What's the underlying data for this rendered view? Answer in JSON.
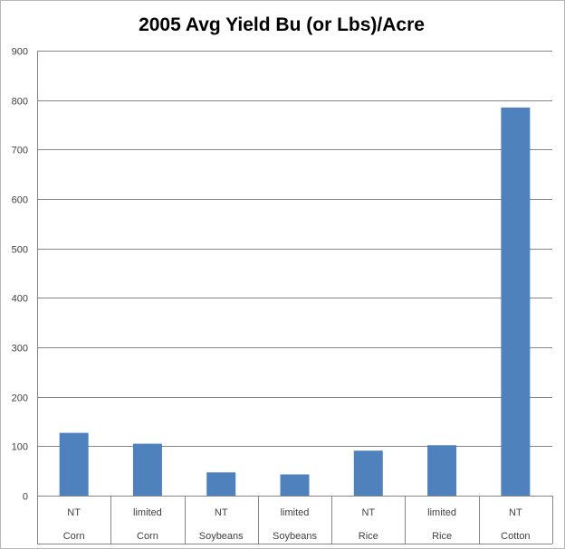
{
  "chart_data": {
    "type": "bar",
    "title": "2005 Avg Yield Bu (or Lbs)/Acre",
    "xlabel": "",
    "ylabel": "",
    "categories": [
      {
        "line1": "NT",
        "line2": "Corn"
      },
      {
        "line1": "limited",
        "line2": "Corn"
      },
      {
        "line1": "NT",
        "line2": "Soybeans"
      },
      {
        "line1": "limited",
        "line2": "Soybeans"
      },
      {
        "line1": "NT",
        "line2": "Rice"
      },
      {
        "line1": "limited",
        "line2": "Rice"
      },
      {
        "line1": "NT",
        "line2": "Cotton"
      }
    ],
    "values": [
      127,
      105,
      47,
      43,
      91,
      102,
      785
    ],
    "ylim": [
      0,
      900
    ],
    "yticks": [
      "0",
      "100",
      "200",
      "300",
      "400",
      "500",
      "600",
      "700",
      "800",
      "900"
    ],
    "grid": true,
    "legend": "none",
    "bar_color": "#4f81bd",
    "grid_color": "#868686"
  }
}
